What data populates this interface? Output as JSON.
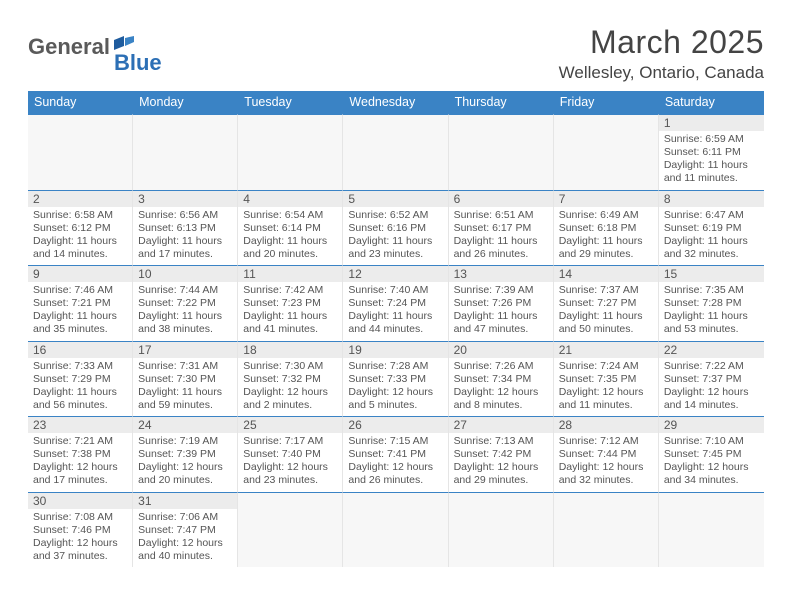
{
  "logo": {
    "general": "General",
    "blue": "Blue"
  },
  "title": "March 2025",
  "location": "Wellesley, Ontario, Canada",
  "colors": {
    "header_bg": "#3a83c5",
    "header_text": "#ffffff",
    "cell_border": "#3a83c5",
    "daynum_bg": "#ececec",
    "text": "#555555",
    "background": "#ffffff"
  },
  "weekdays": [
    "Sunday",
    "Monday",
    "Tuesday",
    "Wednesday",
    "Thursday",
    "Friday",
    "Saturday"
  ],
  "cells": [
    {
      "blank": true
    },
    {
      "blank": true
    },
    {
      "blank": true
    },
    {
      "blank": true
    },
    {
      "blank": true
    },
    {
      "blank": true
    },
    {
      "day": "1",
      "sunrise": "Sunrise: 6:59 AM",
      "sunset": "Sunset: 6:11 PM",
      "daylight": "Daylight: 11 hours and 11 minutes."
    },
    {
      "day": "2",
      "sunrise": "Sunrise: 6:58 AM",
      "sunset": "Sunset: 6:12 PM",
      "daylight": "Daylight: 11 hours and 14 minutes."
    },
    {
      "day": "3",
      "sunrise": "Sunrise: 6:56 AM",
      "sunset": "Sunset: 6:13 PM",
      "daylight": "Daylight: 11 hours and 17 minutes."
    },
    {
      "day": "4",
      "sunrise": "Sunrise: 6:54 AM",
      "sunset": "Sunset: 6:14 PM",
      "daylight": "Daylight: 11 hours and 20 minutes."
    },
    {
      "day": "5",
      "sunrise": "Sunrise: 6:52 AM",
      "sunset": "Sunset: 6:16 PM",
      "daylight": "Daylight: 11 hours and 23 minutes."
    },
    {
      "day": "6",
      "sunrise": "Sunrise: 6:51 AM",
      "sunset": "Sunset: 6:17 PM",
      "daylight": "Daylight: 11 hours and 26 minutes."
    },
    {
      "day": "7",
      "sunrise": "Sunrise: 6:49 AM",
      "sunset": "Sunset: 6:18 PM",
      "daylight": "Daylight: 11 hours and 29 minutes."
    },
    {
      "day": "8",
      "sunrise": "Sunrise: 6:47 AM",
      "sunset": "Sunset: 6:19 PM",
      "daylight": "Daylight: 11 hours and 32 minutes."
    },
    {
      "day": "9",
      "sunrise": "Sunrise: 7:46 AM",
      "sunset": "Sunset: 7:21 PM",
      "daylight": "Daylight: 11 hours and 35 minutes."
    },
    {
      "day": "10",
      "sunrise": "Sunrise: 7:44 AM",
      "sunset": "Sunset: 7:22 PM",
      "daylight": "Daylight: 11 hours and 38 minutes."
    },
    {
      "day": "11",
      "sunrise": "Sunrise: 7:42 AM",
      "sunset": "Sunset: 7:23 PM",
      "daylight": "Daylight: 11 hours and 41 minutes."
    },
    {
      "day": "12",
      "sunrise": "Sunrise: 7:40 AM",
      "sunset": "Sunset: 7:24 PM",
      "daylight": "Daylight: 11 hours and 44 minutes."
    },
    {
      "day": "13",
      "sunrise": "Sunrise: 7:39 AM",
      "sunset": "Sunset: 7:26 PM",
      "daylight": "Daylight: 11 hours and 47 minutes."
    },
    {
      "day": "14",
      "sunrise": "Sunrise: 7:37 AM",
      "sunset": "Sunset: 7:27 PM",
      "daylight": "Daylight: 11 hours and 50 minutes."
    },
    {
      "day": "15",
      "sunrise": "Sunrise: 7:35 AM",
      "sunset": "Sunset: 7:28 PM",
      "daylight": "Daylight: 11 hours and 53 minutes."
    },
    {
      "day": "16",
      "sunrise": "Sunrise: 7:33 AM",
      "sunset": "Sunset: 7:29 PM",
      "daylight": "Daylight: 11 hours and 56 minutes."
    },
    {
      "day": "17",
      "sunrise": "Sunrise: 7:31 AM",
      "sunset": "Sunset: 7:30 PM",
      "daylight": "Daylight: 11 hours and 59 minutes."
    },
    {
      "day": "18",
      "sunrise": "Sunrise: 7:30 AM",
      "sunset": "Sunset: 7:32 PM",
      "daylight": "Daylight: 12 hours and 2 minutes."
    },
    {
      "day": "19",
      "sunrise": "Sunrise: 7:28 AM",
      "sunset": "Sunset: 7:33 PM",
      "daylight": "Daylight: 12 hours and 5 minutes."
    },
    {
      "day": "20",
      "sunrise": "Sunrise: 7:26 AM",
      "sunset": "Sunset: 7:34 PM",
      "daylight": "Daylight: 12 hours and 8 minutes."
    },
    {
      "day": "21",
      "sunrise": "Sunrise: 7:24 AM",
      "sunset": "Sunset: 7:35 PM",
      "daylight": "Daylight: 12 hours and 11 minutes."
    },
    {
      "day": "22",
      "sunrise": "Sunrise: 7:22 AM",
      "sunset": "Sunset: 7:37 PM",
      "daylight": "Daylight: 12 hours and 14 minutes."
    },
    {
      "day": "23",
      "sunrise": "Sunrise: 7:21 AM",
      "sunset": "Sunset: 7:38 PM",
      "daylight": "Daylight: 12 hours and 17 minutes."
    },
    {
      "day": "24",
      "sunrise": "Sunrise: 7:19 AM",
      "sunset": "Sunset: 7:39 PM",
      "daylight": "Daylight: 12 hours and 20 minutes."
    },
    {
      "day": "25",
      "sunrise": "Sunrise: 7:17 AM",
      "sunset": "Sunset: 7:40 PM",
      "daylight": "Daylight: 12 hours and 23 minutes."
    },
    {
      "day": "26",
      "sunrise": "Sunrise: 7:15 AM",
      "sunset": "Sunset: 7:41 PM",
      "daylight": "Daylight: 12 hours and 26 minutes."
    },
    {
      "day": "27",
      "sunrise": "Sunrise: 7:13 AM",
      "sunset": "Sunset: 7:42 PM",
      "daylight": "Daylight: 12 hours and 29 minutes."
    },
    {
      "day": "28",
      "sunrise": "Sunrise: 7:12 AM",
      "sunset": "Sunset: 7:44 PM",
      "daylight": "Daylight: 12 hours and 32 minutes."
    },
    {
      "day": "29",
      "sunrise": "Sunrise: 7:10 AM",
      "sunset": "Sunset: 7:45 PM",
      "daylight": "Daylight: 12 hours and 34 minutes."
    },
    {
      "day": "30",
      "sunrise": "Sunrise: 7:08 AM",
      "sunset": "Sunset: 7:46 PM",
      "daylight": "Daylight: 12 hours and 37 minutes."
    },
    {
      "day": "31",
      "sunrise": "Sunrise: 7:06 AM",
      "sunset": "Sunset: 7:47 PM",
      "daylight": "Daylight: 12 hours and 40 minutes."
    },
    {
      "blank": true
    },
    {
      "blank": true
    },
    {
      "blank": true
    },
    {
      "blank": true
    },
    {
      "blank": true
    }
  ]
}
